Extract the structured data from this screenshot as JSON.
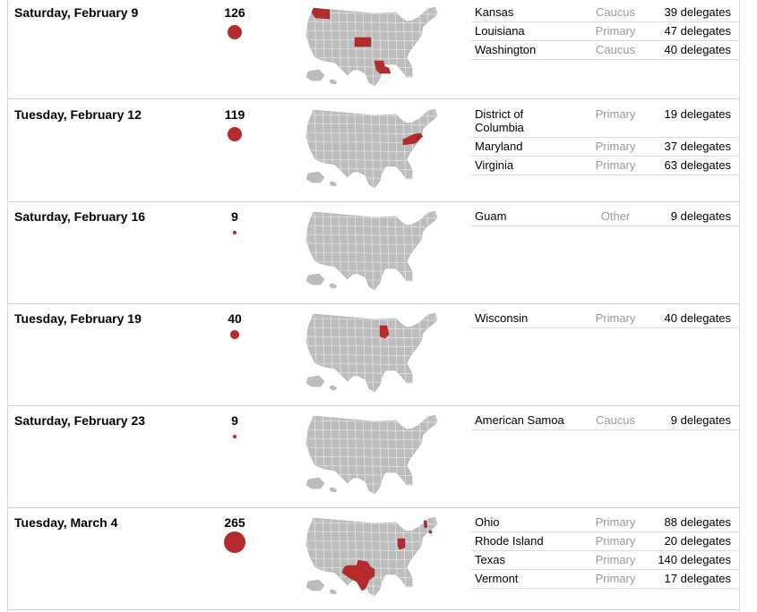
{
  "colors": {
    "highlight": "#b52a2a",
    "state_fill": "#bdbdbd",
    "state_stroke": "#e9e9e9"
  },
  "map_icon": "us-map-icon",
  "rows": [
    {
      "date": "Saturday, February 9",
      "count": "126",
      "count_value": 126,
      "states": [
        {
          "name": "Kansas",
          "type": "Caucus",
          "delegates": "39 delegates"
        },
        {
          "name": "Louisiana",
          "type": "Primary",
          "delegates": "47 delegates"
        },
        {
          "name": "Washington",
          "type": "Caucus",
          "delegates": "40 delegates"
        }
      ]
    },
    {
      "date": "Tuesday, February 12",
      "count": "119",
      "count_value": 119,
      "states": [
        {
          "name": "District of Columbia",
          "type": "Primary",
          "delegates": "19 delegates"
        },
        {
          "name": "Maryland",
          "type": "Primary",
          "delegates": "37 delegates"
        },
        {
          "name": "Virginia",
          "type": "Primary",
          "delegates": "63 delegates"
        }
      ]
    },
    {
      "date": "Saturday, February 16",
      "count": "9",
      "count_value": 9,
      "states": [
        {
          "name": "Guam",
          "type": "Other",
          "delegates": "9 delegates"
        }
      ]
    },
    {
      "date": "Tuesday, February 19",
      "count": "40",
      "count_value": 40,
      "states": [
        {
          "name": "Wisconsin",
          "type": "Primary",
          "delegates": "40 delegates"
        }
      ]
    },
    {
      "date": "Saturday, February 23",
      "count": "9",
      "count_value": 9,
      "states": [
        {
          "name": "American Samoa",
          "type": "Caucus",
          "delegates": "9 delegates"
        }
      ]
    },
    {
      "date": "Tuesday, March 4",
      "count": "265",
      "count_value": 265,
      "states": [
        {
          "name": "Ohio",
          "type": "Primary",
          "delegates": "88 delegates"
        },
        {
          "name": "Rhode Island",
          "type": "Primary",
          "delegates": "20 delegates"
        },
        {
          "name": "Texas",
          "type": "Primary",
          "delegates": "140 delegates"
        },
        {
          "name": "Vermont",
          "type": "Primary",
          "delegates": "17 delegates"
        }
      ]
    }
  ]
}
